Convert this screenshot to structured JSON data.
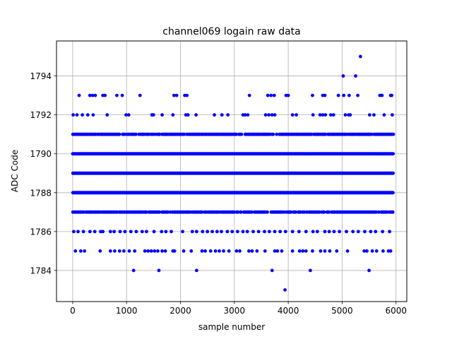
{
  "chart_data": {
    "type": "scatter",
    "title": "channel069 logain raw data",
    "xlabel": "sample number",
    "ylabel": "ADC Code",
    "xlim": [
      -300,
      6200
    ],
    "ylim": [
      1782.4,
      1795.8
    ],
    "x_ticks": [
      0,
      1000,
      2000,
      3000,
      4000,
      5000,
      6000
    ],
    "y_ticks": [
      1784,
      1786,
      1788,
      1790,
      1792,
      1794
    ],
    "grid": true,
    "marker_color": "#0000ff",
    "series": [
      {
        "bands": [
          {
            "y": 1787,
            "x_start": 0,
            "x_end": 5950,
            "density": "high"
          },
          {
            "y": 1788,
            "x_start": 0,
            "x_end": 5950,
            "density": "dense"
          },
          {
            "y": 1789,
            "x_start": 0,
            "x_end": 5950,
            "density": "dense"
          },
          {
            "y": 1790,
            "x_start": 0,
            "x_end": 5950,
            "density": "dense"
          },
          {
            "y": 1791,
            "x_start": 0,
            "x_end": 5950,
            "density": "high"
          }
        ],
        "points": [
          [
            1130,
            1784
          ],
          [
            1600,
            1784
          ],
          [
            2300,
            1784
          ],
          [
            3700,
            1784
          ],
          [
            4410,
            1784
          ],
          [
            5500,
            1784
          ],
          [
            3940,
            1783
          ],
          [
            5020,
            1794
          ],
          [
            5250,
            1794
          ],
          [
            5340,
            1795
          ],
          [
            50,
            1785
          ],
          [
            150,
            1785
          ],
          [
            220,
            1785
          ],
          [
            510,
            1785
          ],
          [
            700,
            1785
          ],
          [
            780,
            1785
          ],
          [
            870,
            1785
          ],
          [
            950,
            1785
          ],
          [
            1050,
            1785
          ],
          [
            1150,
            1785
          ],
          [
            1340,
            1785
          ],
          [
            1400,
            1785
          ],
          [
            1460,
            1785
          ],
          [
            1520,
            1785
          ],
          [
            1580,
            1785
          ],
          [
            1660,
            1785
          ],
          [
            1720,
            1785
          ],
          [
            1860,
            1785
          ],
          [
            1890,
            1785
          ],
          [
            2060,
            1785
          ],
          [
            2200,
            1785
          ],
          [
            2400,
            1785
          ],
          [
            2460,
            1785
          ],
          [
            2560,
            1785
          ],
          [
            2650,
            1785
          ],
          [
            2720,
            1785
          ],
          [
            2800,
            1785
          ],
          [
            2900,
            1785
          ],
          [
            3040,
            1785
          ],
          [
            3100,
            1785
          ],
          [
            3270,
            1785
          ],
          [
            3330,
            1785
          ],
          [
            3420,
            1785
          ],
          [
            3570,
            1785
          ],
          [
            3750,
            1785
          ],
          [
            3800,
            1785
          ],
          [
            3880,
            1785
          ],
          [
            4080,
            1785
          ],
          [
            4210,
            1785
          ],
          [
            4270,
            1785
          ],
          [
            4330,
            1785
          ],
          [
            4450,
            1785
          ],
          [
            4600,
            1785
          ],
          [
            4680,
            1785
          ],
          [
            4770,
            1785
          ],
          [
            4900,
            1785
          ],
          [
            5100,
            1785
          ],
          [
            5410,
            1785
          ],
          [
            5460,
            1785
          ],
          [
            5560,
            1785
          ],
          [
            5640,
            1785
          ],
          [
            5760,
            1785
          ],
          [
            5860,
            1785
          ],
          [
            5900,
            1785
          ],
          [
            20,
            1786
          ],
          [
            100,
            1786
          ],
          [
            200,
            1786
          ],
          [
            320,
            1786
          ],
          [
            410,
            1786
          ],
          [
            520,
            1786
          ],
          [
            560,
            1786
          ],
          [
            700,
            1786
          ],
          [
            770,
            1786
          ],
          [
            880,
            1786
          ],
          [
            970,
            1786
          ],
          [
            1080,
            1786
          ],
          [
            1180,
            1786
          ],
          [
            1290,
            1786
          ],
          [
            1370,
            1786
          ],
          [
            1510,
            1786
          ],
          [
            1650,
            1786
          ],
          [
            1730,
            1786
          ],
          [
            1830,
            1786
          ],
          [
            2040,
            1786
          ],
          [
            2220,
            1786
          ],
          [
            2300,
            1786
          ],
          [
            2410,
            1786
          ],
          [
            2500,
            1786
          ],
          [
            2590,
            1786
          ],
          [
            2680,
            1786
          ],
          [
            2760,
            1786
          ],
          [
            2870,
            1786
          ],
          [
            2960,
            1786
          ],
          [
            3060,
            1786
          ],
          [
            3160,
            1786
          ],
          [
            3240,
            1786
          ],
          [
            3350,
            1786
          ],
          [
            3450,
            1786
          ],
          [
            3560,
            1786
          ],
          [
            3650,
            1786
          ],
          [
            3750,
            1786
          ],
          [
            3850,
            1786
          ],
          [
            3950,
            1786
          ],
          [
            4080,
            1786
          ],
          [
            4200,
            1786
          ],
          [
            4330,
            1786
          ],
          [
            4460,
            1786
          ],
          [
            4540,
            1786
          ],
          [
            4680,
            1786
          ],
          [
            4760,
            1786
          ],
          [
            4850,
            1786
          ],
          [
            4950,
            1786
          ],
          [
            5080,
            1786
          ],
          [
            5200,
            1786
          ],
          [
            5300,
            1786
          ],
          [
            5420,
            1786
          ],
          [
            5530,
            1786
          ],
          [
            5620,
            1786
          ],
          [
            5750,
            1786
          ],
          [
            5880,
            1786
          ],
          [
            10,
            1792
          ],
          [
            80,
            1792
          ],
          [
            180,
            1792
          ],
          [
            280,
            1792
          ],
          [
            380,
            1792
          ],
          [
            640,
            1792
          ],
          [
            990,
            1792
          ],
          [
            1040,
            1792
          ],
          [
            1470,
            1792
          ],
          [
            1500,
            1792
          ],
          [
            1660,
            1792
          ],
          [
            1860,
            1792
          ],
          [
            2100,
            1792
          ],
          [
            2140,
            1792
          ],
          [
            2290,
            1792
          ],
          [
            2630,
            1792
          ],
          [
            2770,
            1792
          ],
          [
            2880,
            1792
          ],
          [
            3160,
            1792
          ],
          [
            3200,
            1792
          ],
          [
            3250,
            1792
          ],
          [
            3580,
            1792
          ],
          [
            3640,
            1792
          ],
          [
            3700,
            1792
          ],
          [
            3750,
            1792
          ],
          [
            4080,
            1792
          ],
          [
            4150,
            1792
          ],
          [
            4460,
            1792
          ],
          [
            4590,
            1792
          ],
          [
            4640,
            1792
          ],
          [
            4690,
            1792
          ],
          [
            4790,
            1792
          ],
          [
            4840,
            1792
          ],
          [
            5060,
            1792
          ],
          [
            5120,
            1792
          ],
          [
            5150,
            1792
          ],
          [
            5510,
            1792
          ],
          [
            5590,
            1792
          ],
          [
            5780,
            1792
          ],
          [
            5930,
            1792
          ],
          [
            120,
            1793
          ],
          [
            320,
            1793
          ],
          [
            370,
            1793
          ],
          [
            420,
            1793
          ],
          [
            560,
            1793
          ],
          [
            600,
            1793
          ],
          [
            820,
            1793
          ],
          [
            920,
            1793
          ],
          [
            1250,
            1793
          ],
          [
            1880,
            1793
          ],
          [
            1930,
            1793
          ],
          [
            2080,
            1793
          ],
          [
            2120,
            1793
          ],
          [
            3280,
            1793
          ],
          [
            3620,
            1793
          ],
          [
            3680,
            1793
          ],
          [
            3740,
            1793
          ],
          [
            3960,
            1793
          ],
          [
            4000,
            1793
          ],
          [
            4450,
            1793
          ],
          [
            4640,
            1793
          ],
          [
            4680,
            1793
          ],
          [
            4930,
            1793
          ],
          [
            5030,
            1793
          ],
          [
            5130,
            1793
          ],
          [
            5290,
            1793
          ],
          [
            5700,
            1793
          ],
          [
            5740,
            1793
          ],
          [
            5900,
            1793
          ],
          [
            5920,
            1793
          ]
        ]
      }
    ]
  }
}
